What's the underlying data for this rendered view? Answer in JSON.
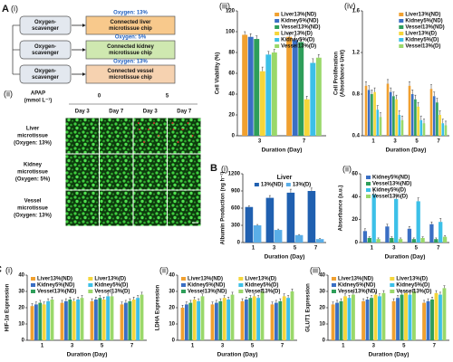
{
  "figure": {
    "diagram": {
      "panel": "A",
      "sublabel": "(i)",
      "rows": [
        {
          "oxygen": "Oxygen: 13%",
          "scavenger": [
            "Oxygen-",
            "scavenger"
          ],
          "chip": [
            "Connected liver",
            "microtissue chip"
          ]
        },
        {
          "oxygen": "Oxygen: 5%",
          "scavenger": [
            "Oxygen-",
            "scavenger"
          ],
          "chip": [
            "Connected kidney",
            "microtissue chip"
          ]
        },
        {
          "oxygen": "Oxygen: 13%",
          "scavenger": [
            "Oxygen-",
            "scavenger"
          ],
          "chip": [
            "Connected vessel",
            "microtissue chip"
          ]
        }
      ]
    },
    "images": {
      "sublabel": "(ii)",
      "drug": "APAP",
      "unit": "(mmol L⁻¹)",
      "doses": [
        "0",
        "5"
      ],
      "days": [
        "Day 3",
        "Day 7",
        "Day 3",
        "Day 7"
      ],
      "rows": [
        {
          "tissue": "Liver",
          "kind": "microtissue",
          "oxygen": "(Oxygen: 13%)"
        },
        {
          "tissue": "Kidney",
          "kind": "microtissue",
          "oxygen": "(Oxygen: 5%)"
        },
        {
          "tissue": "Vessel",
          "kind": "microtissue",
          "oxygen": "(Oxygen: 13%)"
        }
      ]
    }
  },
  "chart_data": [
    {
      "type": "bar",
      "sublabel": "(iii)",
      "ylabel": [
        "Cell Viability (%)"
      ],
      "xlabel": "Duration (Day)",
      "categories": [
        "3",
        "7"
      ],
      "ylim": [
        0,
        120
      ],
      "yticks": [
        0,
        20,
        40,
        60,
        80,
        100,
        120
      ],
      "legend": "upper right",
      "legend_columns": 1,
      "series": [
        {
          "name": "Liver13%(ND)",
          "color": "#f0a030",
          "values": [
            97,
            95
          ],
          "errors": [
            3,
            3
          ]
        },
        {
          "name": "Kidney5%(ND)",
          "color": "#3a6fc4",
          "values": [
            95,
            92
          ],
          "errors": [
            3,
            4
          ]
        },
        {
          "name": "Vessel13%(ND)",
          "color": "#2e9e5a",
          "values": [
            93,
            90
          ],
          "errors": [
            3,
            3
          ]
        },
        {
          "name": "Liver13%(D)",
          "color": "#f5d63a",
          "values": [
            62,
            35
          ],
          "errors": [
            4,
            3
          ]
        },
        {
          "name": "Kidney5%(D)",
          "color": "#3cc0e8",
          "values": [
            78,
            70
          ],
          "errors": [
            3,
            4
          ]
        },
        {
          "name": "Vessel13%(D)",
          "color": "#9ad86a",
          "values": [
            80,
            75
          ],
          "errors": [
            3,
            3
          ]
        }
      ]
    },
    {
      "type": "bar",
      "sublabel": "(iv)",
      "ylabel": [
        "Cell Proliferation",
        "(Absorbance Unit)"
      ],
      "xlabel": "Duration (Day)",
      "categories": [
        "1",
        "3",
        "5",
        "7"
      ],
      "ylim": [
        0.4,
        1.6
      ],
      "yticks": [
        0.4,
        0.8,
        1.2,
        1.6
      ],
      "legend": "upper right",
      "legend_columns": 1,
      "series": [
        {
          "name": "Liver13%(ND)",
          "color": "#f0a030",
          "values": [
            0.88,
            0.9,
            0.88,
            0.85
          ],
          "errors": [
            0.04,
            0.04,
            0.04,
            0.04
          ]
        },
        {
          "name": "Kidney5%(ND)",
          "color": "#3a6fc4",
          "values": [
            0.84,
            0.82,
            0.8,
            0.78
          ],
          "errors": [
            0.04,
            0.04,
            0.04,
            0.04
          ]
        },
        {
          "name": "Vessel13%(ND)",
          "color": "#2e9e5a",
          "values": [
            0.8,
            0.78,
            0.75,
            0.72
          ],
          "errors": [
            0.04,
            0.04,
            0.04,
            0.04
          ]
        },
        {
          "name": "Liver13%(D)",
          "color": "#f5d63a",
          "values": [
            0.82,
            0.75,
            0.68,
            0.6
          ],
          "errors": [
            0.04,
            0.04,
            0.04,
            0.04
          ]
        },
        {
          "name": "Kidney5%(D)",
          "color": "#3cc0e8",
          "values": [
            0.65,
            0.6,
            0.55,
            0.52
          ],
          "errors": [
            0.04,
            0.04,
            0.04,
            0.04
          ]
        },
        {
          "name": "Vessel13%(D)",
          "color": "#9ad86a",
          "values": [
            0.58,
            0.55,
            0.52,
            0.5
          ],
          "errors": [
            0.04,
            0.04,
            0.04,
            0.04
          ]
        }
      ]
    },
    {
      "type": "bar",
      "panel": "B",
      "sublabel": "(i)",
      "title": "Liver",
      "ylabel": [
        "Albumin Production (ng h⁻¹)"
      ],
      "xlabel": "Duration (Day)",
      "categories": [
        "1",
        "3",
        "5",
        "7"
      ],
      "ylim": [
        0,
        1200
      ],
      "yticks": [
        0,
        300,
        600,
        900,
        1200
      ],
      "legend": "upper center",
      "legend_columns": 2,
      "series": [
        {
          "name": "13%(ND)",
          "color": "#2060b0",
          "values": [
            620,
            780,
            870,
            900
          ],
          "errors": [
            20,
            40,
            60,
            50
          ]
        },
        {
          "name": "13%(D)",
          "color": "#5aaee8",
          "values": [
            300,
            220,
            130,
            60
          ],
          "errors": [
            15,
            15,
            10,
            10
          ]
        }
      ]
    },
    {
      "type": "bar",
      "sublabel": "(ii)",
      "ylabel": [
        "Absorbance (a.u.)"
      ],
      "xlabel": "Duration (Day)",
      "categories": [
        "1",
        "3",
        "5",
        "7"
      ],
      "ylim": [
        0,
        60
      ],
      "yticks": [
        0,
        20,
        40,
        60
      ],
      "legend": "upper left",
      "legend_columns": 1,
      "series": [
        {
          "name": "Kidney5%(ND)",
          "color": "#3a6fc4",
          "values": [
            10,
            14,
            12,
            16
          ],
          "errors": [
            2,
            2,
            2,
            2
          ]
        },
        {
          "name": "Vessel13%(ND)",
          "color": "#2e9e5a",
          "values": [
            4,
            4,
            3,
            3
          ],
          "errors": [
            1,
            1,
            1,
            1
          ]
        },
        {
          "name": "Kidney5%(D)",
          "color": "#3cc0e8",
          "values": [
            42,
            38,
            36,
            18
          ],
          "errors": [
            4,
            3,
            3,
            3
          ]
        },
        {
          "name": "Vessel13%(D)",
          "color": "#9ad86a",
          "values": [
            3,
            3,
            4,
            5
          ],
          "errors": [
            1,
            1,
            1,
            1
          ]
        }
      ]
    },
    {
      "type": "bar",
      "panel": "C",
      "sublabel": "(i)",
      "ylabel": [
        "HIF-1α Expression"
      ],
      "xlabel": "Duration (Day)",
      "categories": [
        "1",
        "3",
        "5",
        "7"
      ],
      "ylim": [
        0,
        40
      ],
      "yticks": [
        0,
        10,
        20,
        30,
        40
      ],
      "legend": "upper center",
      "legend_columns": 2,
      "series": [
        {
          "name": "Liver13%(ND)",
          "color": "#f0a030",
          "values": [
            21,
            23,
            24,
            22
          ],
          "errors": [
            1.5,
            1.5,
            1.5,
            1.5
          ]
        },
        {
          "name": "Kidney5%(ND)",
          "color": "#3a6fc4",
          "values": [
            22,
            24,
            25,
            23
          ],
          "errors": [
            1.5,
            1.5,
            1.5,
            1.5
          ]
        },
        {
          "name": "Vessel13%(ND)",
          "color": "#2e9e5a",
          "values": [
            23,
            25,
            26,
            24
          ],
          "errors": [
            1.5,
            1.5,
            1.5,
            1.5
          ]
        },
        {
          "name": "Liver13%(D)",
          "color": "#f5d63a",
          "values": [
            22,
            24,
            25,
            25
          ],
          "errors": [
            1.5,
            1.5,
            1.5,
            1.5
          ]
        },
        {
          "name": "Kidney5%(D)",
          "color": "#3cc0e8",
          "values": [
            24,
            25,
            27,
            26
          ],
          "errors": [
            1.5,
            1.5,
            1.5,
            1.5
          ]
        },
        {
          "name": "Vessel13%(D)",
          "color": "#9ad86a",
          "values": [
            25,
            26,
            27,
            28
          ],
          "errors": [
            1.5,
            1.5,
            1.5,
            1.5
          ]
        }
      ]
    },
    {
      "type": "bar",
      "sublabel": "(ii)",
      "ylabel": [
        "LDHA Expression"
      ],
      "xlabel": "Duration (Day)",
      "categories": [
        "1",
        "3",
        "5",
        "7"
      ],
      "ylim": [
        0,
        40
      ],
      "yticks": [
        0,
        10,
        20,
        30,
        40
      ],
      "legend": "upper center",
      "legend_columns": 2,
      "series": [
        {
          "name": "Liver13%(ND)",
          "color": "#f0a030",
          "values": [
            20,
            22,
            24,
            22
          ],
          "errors": [
            1.5,
            1.5,
            1.5,
            1.5
          ]
        },
        {
          "name": "Kidney5%(ND)",
          "color": "#3a6fc4",
          "values": [
            22,
            23,
            25,
            23
          ],
          "errors": [
            1.5,
            1.5,
            1.5,
            1.5
          ]
        },
        {
          "name": "Vessel13%(ND)",
          "color": "#2e9e5a",
          "values": [
            23,
            24,
            26,
            24
          ],
          "errors": [
            1.5,
            1.5,
            1.5,
            1.5
          ]
        },
        {
          "name": "Liver13%(D)",
          "color": "#f5d63a",
          "values": [
            25,
            26,
            27,
            27
          ],
          "errors": [
            1.5,
            1.5,
            1.5,
            1.5
          ]
        },
        {
          "name": "Kidney5%(D)",
          "color": "#3cc0e8",
          "values": [
            24,
            25,
            26,
            26
          ],
          "errors": [
            1.5,
            1.5,
            1.5,
            1.5
          ]
        },
        {
          "name": "Vessel13%(D)",
          "color": "#9ad86a",
          "values": [
            27,
            28,
            30,
            30
          ],
          "errors": [
            1.5,
            1.5,
            1.5,
            1.5
          ]
        }
      ]
    },
    {
      "type": "bar",
      "sublabel": "(iii)",
      "ylabel": [
        "GLUT1 Expression"
      ],
      "xlabel": "Duration (Day)",
      "categories": [
        "1",
        "3",
        "5",
        "7"
      ],
      "ylim": [
        0,
        40
      ],
      "yticks": [
        0,
        10,
        20,
        30,
        40
      ],
      "legend": "upper center",
      "legend_columns": 2,
      "series": [
        {
          "name": "Liver13%(ND)",
          "color": "#f0a030",
          "values": [
            22,
            24,
            24,
            23
          ],
          "errors": [
            1.5,
            1.5,
            1.5,
            1.5
          ]
        },
        {
          "name": "Kidney5%(ND)",
          "color": "#3a6fc4",
          "values": [
            23,
            25,
            26,
            24
          ],
          "errors": [
            1.5,
            1.5,
            1.5,
            1.5
          ]
        },
        {
          "name": "Vessel13%(ND)",
          "color": "#2e9e5a",
          "values": [
            24,
            26,
            28,
            25
          ],
          "errors": [
            1.5,
            1.5,
            1.5,
            1.5
          ]
        },
        {
          "name": "Liver13%(D)",
          "color": "#f5d63a",
          "values": [
            27,
            28,
            29,
            29
          ],
          "errors": [
            1.5,
            1.5,
            1.5,
            1.5
          ]
        },
        {
          "name": "Kidney5%(D)",
          "color": "#3cc0e8",
          "values": [
            26,
            27,
            28,
            28
          ],
          "errors": [
            1.5,
            1.5,
            1.5,
            1.5
          ]
        },
        {
          "name": "Vessel13%(D)",
          "color": "#9ad86a",
          "values": [
            28,
            29,
            30,
            32
          ],
          "errors": [
            1.5,
            1.5,
            1.5,
            1.5
          ]
        }
      ]
    }
  ]
}
